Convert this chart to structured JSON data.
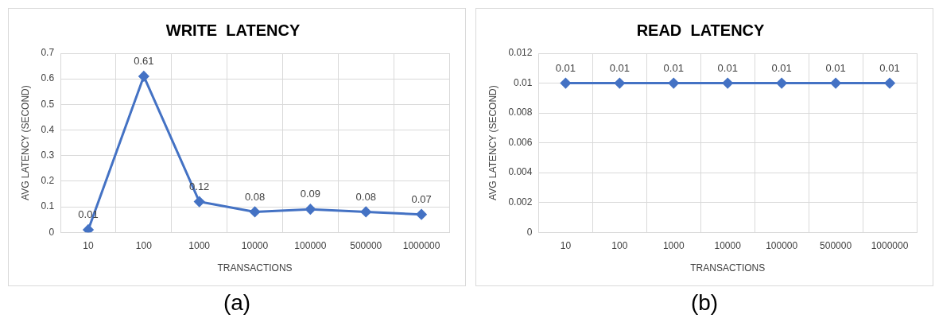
{
  "chart_data": [
    {
      "type": "line",
      "title": "WRITE  LATENCY",
      "xlabel": "TRANSACTIONS",
      "ylabel": "AVG LATENCY (SECOND)",
      "categories": [
        "10",
        "100",
        "1000",
        "10000",
        "100000",
        "500000",
        "1000000"
      ],
      "series": [
        {
          "color": "#4472c4",
          "values": [
            0.01,
            0.61,
            0.12,
            0.08,
            0.09,
            0.08,
            0.07
          ]
        }
      ],
      "ylim": [
        0,
        0.7
      ],
      "yticks": [
        0,
        0.1,
        0.2,
        0.3,
        0.4,
        0.5,
        0.6,
        0.7
      ],
      "grid": true,
      "marker": "diamond",
      "line_style": "solid",
      "data_labels": true,
      "legend": false,
      "annotations": [
        "(a)"
      ]
    },
    {
      "type": "line",
      "title": "READ  LATENCY",
      "xlabel": "TRANSACTIONS",
      "ylabel": "AVG LATENCY (SECOND)",
      "categories": [
        "10",
        "100",
        "1000",
        "10000",
        "100000",
        "500000",
        "1000000"
      ],
      "series": [
        {
          "color": "#4472c4",
          "values": [
            0.01,
            0.01,
            0.01,
            0.01,
            0.01,
            0.01,
            0.01
          ]
        }
      ],
      "ylim": [
        0,
        0.012
      ],
      "yticks": [
        0,
        0.002,
        0.004,
        0.006,
        0.008,
        0.01,
        0.012
      ],
      "grid": true,
      "marker": "diamond",
      "line_style": "solid",
      "data_labels": true,
      "legend": false,
      "annotations": [
        "(b)"
      ]
    }
  ]
}
